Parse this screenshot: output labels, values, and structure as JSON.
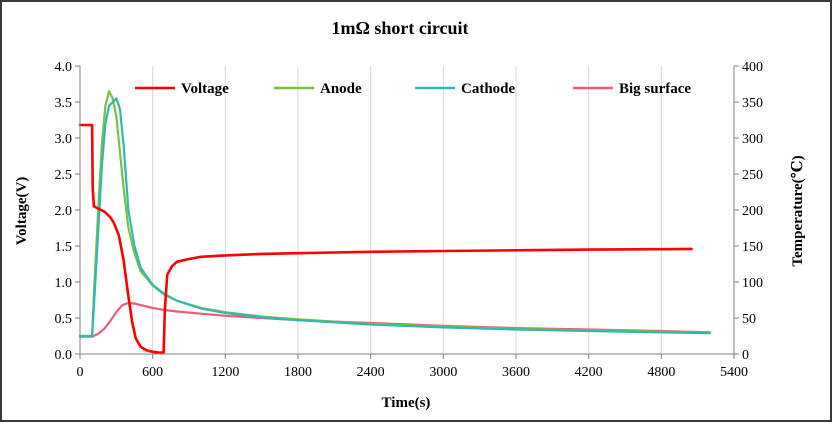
{
  "chart_data": {
    "type": "line",
    "title": "1mΩ short circuit",
    "xlabel": "Time(s)",
    "ylabel": "Voltage(V)",
    "y2label": "Temperature(℃)",
    "xlim": [
      0,
      5400
    ],
    "ylim": [
      0,
      4.0
    ],
    "y2lim": [
      0,
      400
    ],
    "xticks": [
      "0",
      "600",
      "1200",
      "1800",
      "2400",
      "3000",
      "3600",
      "4200",
      "4800",
      "5400"
    ],
    "yticks": [
      "0.0",
      "0.5",
      "1.0",
      "1.5",
      "2.0",
      "2.5",
      "3.0",
      "3.5",
      "4.0"
    ],
    "y2ticks": [
      "0",
      "50",
      "100",
      "150",
      "200",
      "250",
      "300",
      "350",
      "400"
    ],
    "grid": "vertical",
    "legend_position": "top",
    "series": [
      {
        "name": "Voltage",
        "axis": "left",
        "color": "#ff0000",
        "x": [
          0,
          100,
          105,
          115,
          150,
          200,
          250,
          280,
          320,
          360,
          400,
          430,
          460,
          500,
          550,
          600,
          650,
          690,
          700,
          720,
          760,
          800,
          900,
          1000,
          1200,
          1500,
          1800,
          2100,
          2400,
          3000,
          3600,
          4200,
          4800,
          5050
        ],
        "values": [
          3.18,
          3.18,
          2.3,
          2.05,
          2.02,
          1.98,
          1.9,
          1.82,
          1.65,
          1.3,
          0.8,
          0.45,
          0.22,
          0.1,
          0.05,
          0.03,
          0.02,
          0.02,
          0.6,
          1.1,
          1.22,
          1.28,
          1.32,
          1.35,
          1.37,
          1.39,
          1.4,
          1.41,
          1.42,
          1.43,
          1.44,
          1.45,
          1.455,
          1.46
        ]
      },
      {
        "name": "Anode",
        "axis": "right",
        "color": "#7ac143",
        "x": [
          0,
          100,
          120,
          150,
          180,
          210,
          240,
          270,
          300,
          330,
          360,
          400,
          450,
          500,
          600,
          700,
          800,
          1000,
          1200,
          1500,
          1800,
          2400,
          3000,
          3600,
          4200,
          4800,
          5200
        ],
        "values": [
          25,
          25,
          100,
          200,
          290,
          345,
          365,
          355,
          330,
          280,
          230,
          175,
          140,
          115,
          95,
          82,
          74,
          64,
          58,
          52,
          48,
          42,
          38,
          35,
          33,
          31,
          30
        ]
      },
      {
        "name": "Cathode",
        "axis": "right",
        "color": "#31b8b0",
        "x": [
          0,
          100,
          120,
          150,
          180,
          210,
          240,
          270,
          300,
          330,
          360,
          400,
          450,
          500,
          600,
          700,
          800,
          1000,
          1200,
          1500,
          1800,
          2400,
          3000,
          3600,
          4200,
          4800,
          5200
        ],
        "values": [
          25,
          25,
          80,
          170,
          260,
          320,
          345,
          350,
          355,
          340,
          290,
          200,
          150,
          120,
          96,
          83,
          74,
          63,
          57,
          51,
          47,
          41,
          37,
          34,
          32,
          30,
          29
        ]
      },
      {
        "name": "Big surface",
        "axis": "right",
        "color": "#f4597a",
        "x": [
          0,
          100,
          150,
          200,
          250,
          300,
          350,
          400,
          450,
          500,
          600,
          700,
          800,
          1000,
          1200,
          1500,
          1800,
          2400,
          3000,
          3600,
          4200,
          4800,
          5200
        ],
        "values": [
          24,
          24,
          28,
          35,
          46,
          58,
          68,
          71,
          70,
          68,
          64,
          61,
          59,
          56,
          53,
          50,
          47,
          43,
          39,
          36,
          34,
          32,
          30
        ]
      }
    ]
  }
}
